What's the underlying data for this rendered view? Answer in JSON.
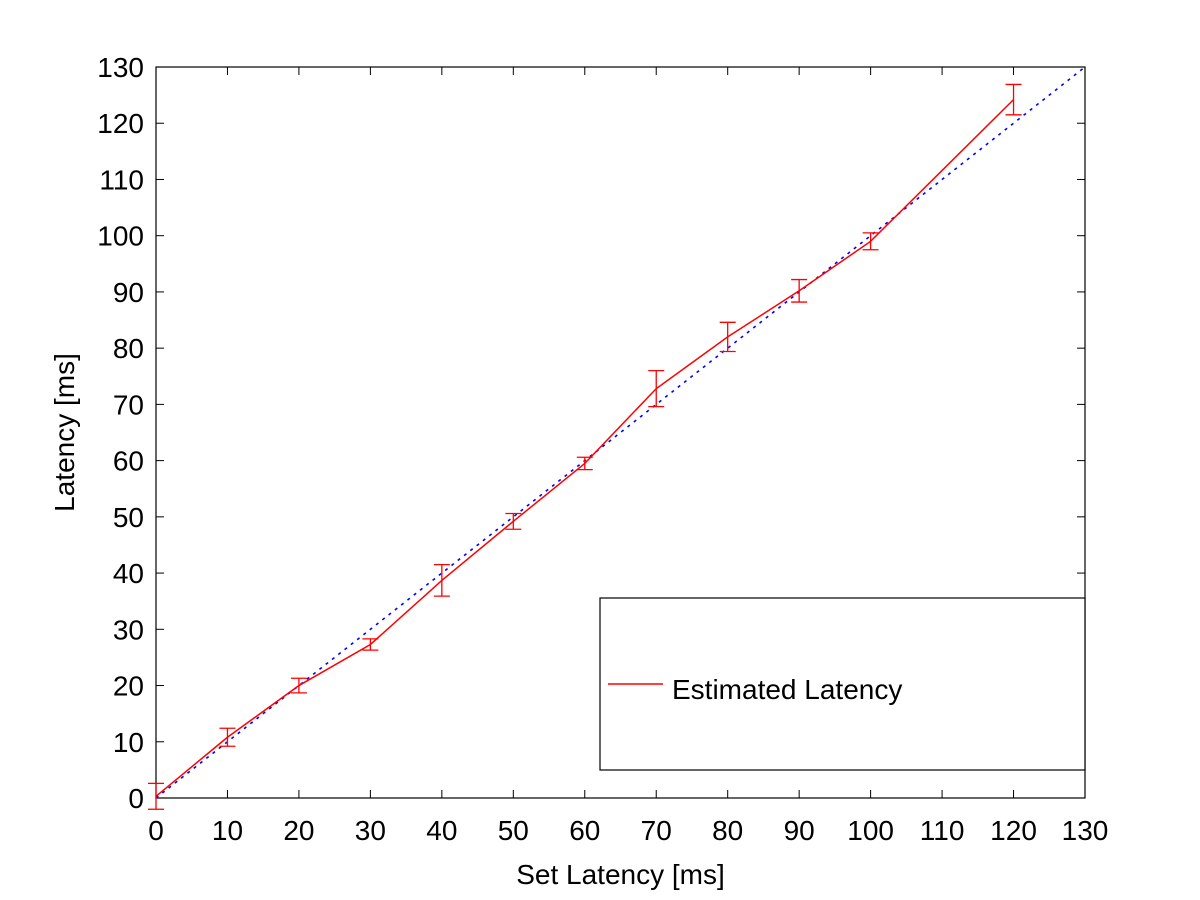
{
  "chart_data": {
    "type": "line",
    "title": "",
    "xlabel": "Set Latency [ms]",
    "ylabel": "Latency [ms]",
    "xlim": [
      0,
      130
    ],
    "ylim": [
      0,
      130
    ],
    "xticks": [
      0,
      10,
      20,
      30,
      40,
      50,
      60,
      70,
      80,
      90,
      100,
      110,
      120,
      130
    ],
    "yticks": [
      0,
      10,
      20,
      30,
      40,
      50,
      60,
      70,
      80,
      90,
      100,
      110,
      120,
      130
    ],
    "grid": false,
    "legend_position": "bottom-right",
    "series": [
      {
        "name": "Estimated Latency",
        "color": "#ff0000",
        "style": "solid",
        "x": [
          0,
          10,
          20,
          30,
          40,
          50,
          60,
          70,
          80,
          90,
          100,
          120
        ],
        "y": [
          0.3,
          10.8,
          20.0,
          27.3,
          38.7,
          49.2,
          59.5,
          72.8,
          82.0,
          90.2,
          99.0,
          124.2
        ],
        "error": [
          2.3,
          1.6,
          1.3,
          1.0,
          2.8,
          1.4,
          1.1,
          3.2,
          2.6,
          2.0,
          1.5,
          2.7
        ]
      },
      {
        "name": "",
        "color": "#0000ff",
        "style": "dotted",
        "x": [
          0,
          130
        ],
        "y": [
          0,
          130
        ]
      }
    ]
  }
}
